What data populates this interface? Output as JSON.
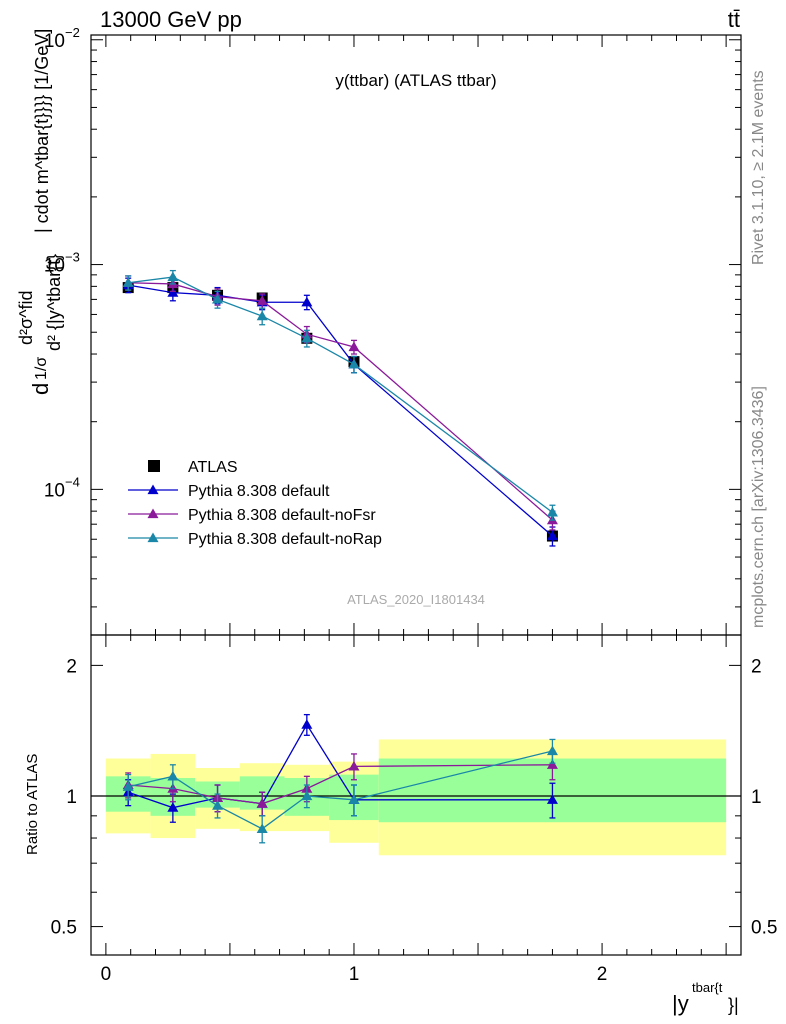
{
  "header": {
    "left": "13000 GeV pp",
    "right": "tt̄"
  },
  "side_labels": {
    "rivet": "Rivet 3.1.10, ≥ 2.1M events",
    "mcplots": "mcplots.cern.ch [arXiv:1306.3436]"
  },
  "chart_data": [
    {
      "type": "line",
      "title": "y(ttbar) (ATLAS ttbar)",
      "watermark": "ATLAS_2020_I1801434",
      "ylabel": "d(1/σ)dσ/d|y| ... [1/GeV]",
      "ylabel_parts": {
        "main": "d",
        "sigma_frac": "1/σ",
        "frac_top": "d²σ^fid",
        "frac_bottom": "d² {|y^tbar{t}",
        "tail": "| cdot m^tbar{t}}}} [1/GeV]"
      },
      "yscale": "log",
      "ylim": [
        2.25e-05,
        0.0105
      ],
      "xlim": [
        -0.06,
        2.56
      ],
      "yticks": [
        {
          "value": 0.01,
          "label": "10",
          "exp": "−2"
        },
        {
          "value": 0.001,
          "label": "10",
          "exp": "−3"
        },
        {
          "value": 0.0001,
          "label": "10",
          "exp": "−4"
        }
      ],
      "bins": [
        [
          0,
          0.18
        ],
        [
          0.18,
          0.36
        ],
        [
          0.36,
          0.54
        ],
        [
          0.54,
          0.72
        ],
        [
          0.72,
          0.9
        ],
        [
          0.9,
          1.1
        ],
        [
          1.1,
          2.5
        ]
      ],
      "x": [
        0.09,
        0.27,
        0.45,
        0.63,
        0.81,
        1.0,
        1.8
      ],
      "legend_position": "bottom-left",
      "series": [
        {
          "name": "ATLAS",
          "marker": "square",
          "color": "#000000",
          "values": [
            0.00079,
            0.00079,
            0.00073,
            0.00071,
            0.00047,
            0.00037,
            6.2e-05
          ]
        },
        {
          "name": "Pythia 8.308 default",
          "marker": "triangle",
          "color": "#0000cc",
          "values": [
            0.00081,
            0.00075,
            0.00073,
            0.00068,
            0.00068,
            0.00036,
            6.2e-05
          ],
          "errors": [
            6e-05,
            6e-05,
            6e-05,
            5e-05,
            5e-05,
            3e-05,
            6e-06
          ]
        },
        {
          "name": "Pythia 8.308 default-noFsr",
          "marker": "triangle",
          "color": "#8b1a9b",
          "values": [
            0.00083,
            0.00082,
            0.00072,
            0.00069,
            0.00049,
            0.00043,
            7.3e-05
          ],
          "errors": [
            6e-05,
            6e-05,
            6e-05,
            5e-05,
            4e-05,
            3e-05,
            7e-06
          ]
        },
        {
          "name": "Pythia 8.308 default-noRap",
          "marker": "triangle",
          "color": "#1a87a8",
          "values": [
            0.00083,
            0.00088,
            0.0007,
            0.00059,
            0.00047,
            0.00036,
            7.9e-05
          ],
          "errors": [
            6e-05,
            6e-05,
            6e-05,
            5e-05,
            4e-05,
            3e-05,
            6e-06
          ]
        }
      ]
    },
    {
      "type": "line",
      "ylabel": "Ratio to ATLAS",
      "xlabel": "|y^tbar{t}}|",
      "xlabel_parts": {
        "main": "|y",
        "sup": "tbar{t",
        "tail": "}|"
      },
      "yscale": "log",
      "ylim": [
        0.43,
        2.35
      ],
      "xlim": [
        -0.06,
        2.56
      ],
      "yticks": [
        {
          "value": 2,
          "label": "2"
        },
        {
          "value": 1,
          "label": "1"
        },
        {
          "value": 0.5,
          "label": "0.5"
        }
      ],
      "xticks": [
        {
          "value": 0,
          "label": "0"
        },
        {
          "value": 1,
          "label": "1"
        },
        {
          "value": 2,
          "label": "2"
        }
      ],
      "bands": {
        "bins": [
          [
            0,
            0.18
          ],
          [
            0.18,
            0.36
          ],
          [
            0.36,
            0.54
          ],
          [
            0.54,
            0.72
          ],
          [
            0.72,
            0.9
          ],
          [
            0.9,
            1.1
          ],
          [
            1.1,
            2.5
          ]
        ],
        "stat_color": "#99ff99",
        "total_color": "#ffff99",
        "stat": [
          [
            0.92,
            1.11
          ],
          [
            0.9,
            1.1
          ],
          [
            0.94,
            1.08
          ],
          [
            0.93,
            1.11
          ],
          [
            0.9,
            1.1
          ],
          [
            0.88,
            1.12
          ],
          [
            0.87,
            1.22
          ]
        ],
        "total": [
          [
            0.82,
            1.22
          ],
          [
            0.8,
            1.25
          ],
          [
            0.84,
            1.16
          ],
          [
            0.83,
            1.19
          ],
          [
            0.83,
            1.18
          ],
          [
            0.78,
            1.2
          ],
          [
            0.73,
            1.35
          ]
        ]
      },
      "series": [
        {
          "name": "Pythia 8.308 default",
          "color": "#0000cc",
          "values": [
            1.02,
            0.94,
            0.99,
            0.96,
            1.46,
            0.98,
            0.98
          ],
          "errors": [
            0.07,
            0.07,
            0.07,
            0.06,
            0.08,
            0.08,
            0.09
          ]
        },
        {
          "name": "Pythia 8.308 default-noFsr",
          "color": "#8b1a9b",
          "values": [
            1.06,
            1.04,
            0.99,
            0.96,
            1.04,
            1.17,
            1.18
          ],
          "errors": [
            0.07,
            0.07,
            0.07,
            0.06,
            0.07,
            0.08,
            0.09
          ]
        },
        {
          "name": "Pythia 8.308 default-noRap",
          "color": "#1a87a8",
          "values": [
            1.05,
            1.11,
            0.95,
            0.84,
            1.0,
            0.98,
            1.27
          ],
          "errors": [
            0.07,
            0.07,
            0.06,
            0.06,
            0.06,
            0.08,
            0.08
          ]
        }
      ]
    }
  ]
}
